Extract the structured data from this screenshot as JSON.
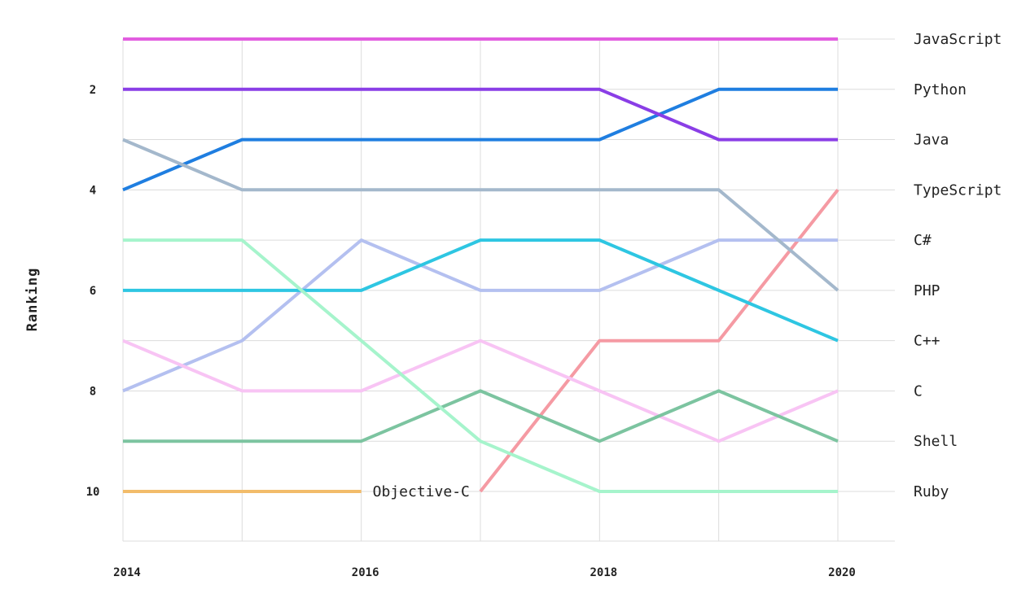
{
  "chart_data": {
    "type": "line",
    "title": "",
    "xlabel": "",
    "ylabel": "Ranking",
    "x": [
      2014,
      2015,
      2016,
      2017,
      2018,
      2019,
      2020
    ],
    "x_tick_labels": [
      "2014",
      "2016",
      "2018",
      "2020"
    ],
    "y_tick_labels": [
      "2",
      "4",
      "6",
      "8",
      "10"
    ],
    "ylim": [
      11,
      1
    ],
    "xlim": [
      2014,
      2020.5
    ],
    "grid": true,
    "legend": "series labels at right end of lines",
    "series": [
      {
        "name": "JavaScript",
        "color": "#e25ee0",
        "values": [
          1,
          1,
          1,
          1,
          1,
          1,
          1
        ]
      },
      {
        "name": "Python",
        "color": "#1f7ee0",
        "values": [
          4,
          3,
          3,
          3,
          3,
          2,
          2
        ]
      },
      {
        "name": "Java",
        "color": "#8a3ee6",
        "values": [
          2,
          2,
          2,
          2,
          2,
          3,
          3
        ]
      },
      {
        "name": "TypeScript",
        "color": "#f59aa3",
        "values": [
          null,
          null,
          null,
          10,
          7,
          7,
          4
        ]
      },
      {
        "name": "C#",
        "color": "#b4c0f0",
        "values": [
          8,
          7,
          5,
          6,
          6,
          5,
          5
        ]
      },
      {
        "name": "PHP",
        "color": "#a4b8cc",
        "values": [
          3,
          4,
          4,
          4,
          4,
          4,
          6
        ]
      },
      {
        "name": "C++",
        "color": "#2ec6e2",
        "values": [
          6,
          6,
          6,
          5,
          5,
          6,
          7
        ]
      },
      {
        "name": "C",
        "color": "#f8c4f4",
        "values": [
          7,
          8,
          8,
          7,
          8,
          9,
          8
        ]
      },
      {
        "name": "Shell",
        "color": "#7cc4a0",
        "values": [
          9,
          9,
          9,
          8,
          9,
          8,
          9
        ]
      },
      {
        "name": "Ruby",
        "color": "#a6f4cc",
        "values": [
          5,
          5,
          7,
          9,
          10,
          10,
          10
        ]
      },
      {
        "name": "Objective-C",
        "color": "#f2bc6a",
        "values": [
          10,
          10,
          10,
          null,
          null,
          null,
          null
        ]
      }
    ]
  }
}
